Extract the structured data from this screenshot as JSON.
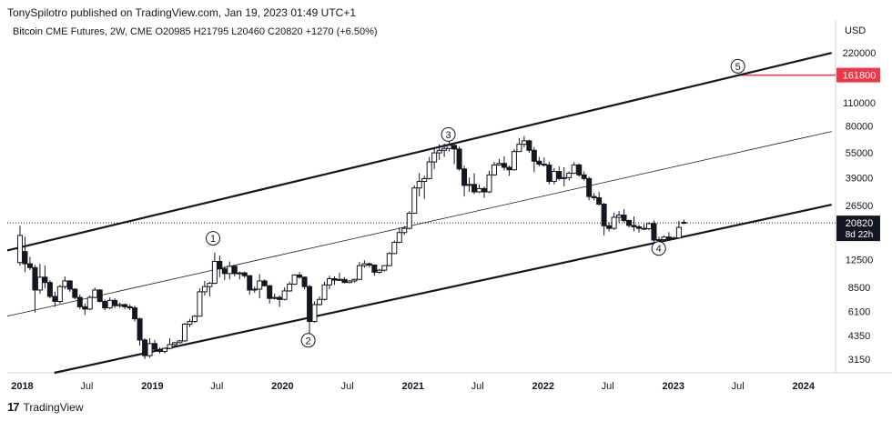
{
  "header": {
    "published_line": "TonySpilotro published on TradingView.com, Jan 19, 2023 01:49 UTC+1",
    "legend": "Bitcoin CME Futures, 2W, CME  O20985  H21795  L20460  C20820  +1270 (+6.50%)"
  },
  "footer": {
    "brand": "TradingView",
    "logo_icon": "tradingview-logo-icon"
  },
  "chart_data": {
    "type": "candlestick",
    "title": "Bitcoin CME Futures, 2W, CME",
    "y_scale": "log",
    "y_unit": "USD",
    "ylim": [
      2600,
      270000
    ],
    "y_ticks": [
      220000,
      161800,
      110000,
      80000,
      55000,
      39000,
      26500,
      20820,
      12500,
      8500,
      6100,
      4350,
      3150
    ],
    "y_tick_labels": [
      "220000",
      "161800",
      "110000",
      "80000",
      "55000",
      "39000",
      "26500",
      "20820",
      "12500",
      "8500",
      "6100",
      "4350",
      "3150"
    ],
    "x_ticks": [
      "2018",
      "Jul",
      "2019",
      "Jul",
      "2020",
      "Jul",
      "2021",
      "Jul",
      "2022",
      "Jul",
      "2023",
      "Jul",
      "2024"
    ],
    "xlim": [
      "2017-11-20",
      "2024-03-31"
    ],
    "x_tick_dates": [
      "2018-01-01",
      "2018-07-01",
      "2019-01-01",
      "2019-07-01",
      "2020-01-01",
      "2020-07-01",
      "2021-01-01",
      "2021-07-01",
      "2022-01-01",
      "2022-07-01",
      "2023-01-01",
      "2023-07-01",
      "2024-01-01"
    ],
    "last_price": {
      "value": 20820,
      "label": "20820",
      "countdown": "8d 22h"
    },
    "target_label": {
      "value": 161800,
      "label": "161800",
      "color": "#f23645"
    },
    "channel_lines": [
      {
        "name": "upper",
        "from": [
          "2017-11-20",
          14200
        ],
        "to": [
          "2024-03-20",
          220000
        ],
        "width": "thick"
      },
      {
        "name": "middle",
        "from": [
          "2017-11-20",
          5700
        ],
        "to": [
          "2024-03-20",
          74000
        ],
        "width": "thin"
      },
      {
        "name": "lower",
        "from": [
          "2018-04-01",
          2600
        ],
        "to": [
          "2024-03-20",
          26800
        ],
        "width": "thick"
      }
    ],
    "annotations": [
      {
        "label": "1",
        "date": "2019-06-20",
        "value": 16800
      },
      {
        "label": "2",
        "date": "2020-03-13",
        "value": 4080
      },
      {
        "label": "3",
        "date": "2021-04-10",
        "value": 71000
      },
      {
        "label": "4",
        "date": "2022-11-21",
        "value": 14600
      },
      {
        "label": "5",
        "date": "2023-07-01",
        "value": 183000
      }
    ],
    "candles": [
      {
        "date": "2017-12-18",
        "o": 12000,
        "h": 20000,
        "l": 11500,
        "c": 17500
      },
      {
        "date": "2018-01-01",
        "o": 14000,
        "h": 17200,
        "l": 10500,
        "c": 11800
      },
      {
        "date": "2018-01-15",
        "o": 11800,
        "h": 13000,
        "l": 10800,
        "c": 11200
      },
      {
        "date": "2018-01-29",
        "o": 11200,
        "h": 11600,
        "l": 6000,
        "c": 8200
      },
      {
        "date": "2018-02-12",
        "o": 8200,
        "h": 11800,
        "l": 7800,
        "c": 9800
      },
      {
        "date": "2018-02-26",
        "o": 9800,
        "h": 11500,
        "l": 8400,
        "c": 9100
      },
      {
        "date": "2018-03-12",
        "o": 9100,
        "h": 9400,
        "l": 7300,
        "c": 7500
      },
      {
        "date": "2018-03-26",
        "o": 7500,
        "h": 8000,
        "l": 6500,
        "c": 7000
      },
      {
        "date": "2018-04-09",
        "o": 7000,
        "h": 8800,
        "l": 6800,
        "c": 8600
      },
      {
        "date": "2018-04-23",
        "o": 8600,
        "h": 9900,
        "l": 8300,
        "c": 9300
      },
      {
        "date": "2018-05-07",
        "o": 9300,
        "h": 9400,
        "l": 8000,
        "c": 8300
      },
      {
        "date": "2018-05-21",
        "o": 8300,
        "h": 8400,
        "l": 7200,
        "c": 7400
      },
      {
        "date": "2018-06-04",
        "o": 7400,
        "h": 7700,
        "l": 6300,
        "c": 6500
      },
      {
        "date": "2018-06-18",
        "o": 6500,
        "h": 6800,
        "l": 5800,
        "c": 6300
      },
      {
        "date": "2018-07-02",
        "o": 6300,
        "h": 7600,
        "l": 6200,
        "c": 7400
      },
      {
        "date": "2018-07-16",
        "o": 7400,
        "h": 8500,
        "l": 7300,
        "c": 8200
      },
      {
        "date": "2018-07-30",
        "o": 8200,
        "h": 8300,
        "l": 6900,
        "c": 7000
      },
      {
        "date": "2018-08-13",
        "o": 7000,
        "h": 7200,
        "l": 6200,
        "c": 6400
      },
      {
        "date": "2018-08-27",
        "o": 6400,
        "h": 7400,
        "l": 6300,
        "c": 7100
      },
      {
        "date": "2018-09-10",
        "o": 7100,
        "h": 7300,
        "l": 6400,
        "c": 6600
      },
      {
        "date": "2018-09-24",
        "o": 6600,
        "h": 6900,
        "l": 6400,
        "c": 6700
      },
      {
        "date": "2018-10-08",
        "o": 6700,
        "h": 6800,
        "l": 6300,
        "c": 6500
      },
      {
        "date": "2018-10-22",
        "o": 6500,
        "h": 6700,
        "l": 6200,
        "c": 6400
      },
      {
        "date": "2018-11-05",
        "o": 6400,
        "h": 6600,
        "l": 5300,
        "c": 5500
      },
      {
        "date": "2018-11-19",
        "o": 5500,
        "h": 5600,
        "l": 3800,
        "c": 4100
      },
      {
        "date": "2018-12-03",
        "o": 4100,
        "h": 4200,
        "l": 3150,
        "c": 3300
      },
      {
        "date": "2018-12-17",
        "o": 3300,
        "h": 4200,
        "l": 3200,
        "c": 3900
      },
      {
        "date": "2018-12-31",
        "o": 3900,
        "h": 4100,
        "l": 3500,
        "c": 3600
      },
      {
        "date": "2019-01-14",
        "o": 3600,
        "h": 3700,
        "l": 3400,
        "c": 3500
      },
      {
        "date": "2019-01-28",
        "o": 3500,
        "h": 3700,
        "l": 3400,
        "c": 3650
      },
      {
        "date": "2019-02-11",
        "o": 3650,
        "h": 4200,
        "l": 3600,
        "c": 3850
      },
      {
        "date": "2019-02-25",
        "o": 3850,
        "h": 4000,
        "l": 3750,
        "c": 3950
      },
      {
        "date": "2019-03-11",
        "o": 3950,
        "h": 4100,
        "l": 3900,
        "c": 4050
      },
      {
        "date": "2019-03-25",
        "o": 4050,
        "h": 5200,
        "l": 4000,
        "c": 5100
      },
      {
        "date": "2019-04-08",
        "o": 5100,
        "h": 5500,
        "l": 4900,
        "c": 5300
      },
      {
        "date": "2019-04-22",
        "o": 5300,
        "h": 5800,
        "l": 5200,
        "c": 5700
      },
      {
        "date": "2019-05-06",
        "o": 5700,
        "h": 8400,
        "l": 5700,
        "c": 8000
      },
      {
        "date": "2019-05-20",
        "o": 8000,
        "h": 9300,
        "l": 7600,
        "c": 8600
      },
      {
        "date": "2019-06-03",
        "o": 8600,
        "h": 9200,
        "l": 7500,
        "c": 9000
      },
      {
        "date": "2019-06-17",
        "o": 9000,
        "h": 13800,
        "l": 8900,
        "c": 12200
      },
      {
        "date": "2019-07-01",
        "o": 12200,
        "h": 13200,
        "l": 9800,
        "c": 11000
      },
      {
        "date": "2019-07-15",
        "o": 11000,
        "h": 11400,
        "l": 9400,
        "c": 10300
      },
      {
        "date": "2019-07-29",
        "o": 10300,
        "h": 12200,
        "l": 9500,
        "c": 11400
      },
      {
        "date": "2019-08-12",
        "o": 11400,
        "h": 11600,
        "l": 9900,
        "c": 10300
      },
      {
        "date": "2019-08-26",
        "o": 10300,
        "h": 10600,
        "l": 9500,
        "c": 10400
      },
      {
        "date": "2019-09-09",
        "o": 10400,
        "h": 10600,
        "l": 9700,
        "c": 10000
      },
      {
        "date": "2019-09-23",
        "o": 10000,
        "h": 10100,
        "l": 7700,
        "c": 8200
      },
      {
        "date": "2019-10-07",
        "o": 8200,
        "h": 8600,
        "l": 7900,
        "c": 8300
      },
      {
        "date": "2019-10-21",
        "o": 8300,
        "h": 10200,
        "l": 7300,
        "c": 9300
      },
      {
        "date": "2019-11-04",
        "o": 9300,
        "h": 9500,
        "l": 8600,
        "c": 8700
      },
      {
        "date": "2019-11-18",
        "o": 8700,
        "h": 8800,
        "l": 6800,
        "c": 7300
      },
      {
        "date": "2019-12-02",
        "o": 7300,
        "h": 7800,
        "l": 7200,
        "c": 7400
      },
      {
        "date": "2019-12-16",
        "o": 7400,
        "h": 7600,
        "l": 6500,
        "c": 7200
      },
      {
        "date": "2019-12-30",
        "o": 7200,
        "h": 8500,
        "l": 7100,
        "c": 8100
      },
      {
        "date": "2020-01-13",
        "o": 8100,
        "h": 9200,
        "l": 8000,
        "c": 8900
      },
      {
        "date": "2020-01-27",
        "o": 8900,
        "h": 10200,
        "l": 8800,
        "c": 10100
      },
      {
        "date": "2020-02-10",
        "o": 10100,
        "h": 10500,
        "l": 9600,
        "c": 9800
      },
      {
        "date": "2020-02-24",
        "o": 9800,
        "h": 9900,
        "l": 8300,
        "c": 8600
      },
      {
        "date": "2020-03-09",
        "o": 8600,
        "h": 8800,
        "l": 3800,
        "c": 5300
      },
      {
        "date": "2020-03-23",
        "o": 5300,
        "h": 7000,
        "l": 5200,
        "c": 6700
      },
      {
        "date": "2020-04-06",
        "o": 6700,
        "h": 7500,
        "l": 6600,
        "c": 7200
      },
      {
        "date": "2020-04-20",
        "o": 7200,
        "h": 9200,
        "l": 7100,
        "c": 8800
      },
      {
        "date": "2020-05-04",
        "o": 8800,
        "h": 10000,
        "l": 8300,
        "c": 9600
      },
      {
        "date": "2020-05-18",
        "o": 9600,
        "h": 9900,
        "l": 8800,
        "c": 9400
      },
      {
        "date": "2020-06-01",
        "o": 9400,
        "h": 10400,
        "l": 9300,
        "c": 9500
      },
      {
        "date": "2020-06-15",
        "o": 9500,
        "h": 9800,
        "l": 9000,
        "c": 9100
      },
      {
        "date": "2020-06-29",
        "o": 9100,
        "h": 9400,
        "l": 9000,
        "c": 9300
      },
      {
        "date": "2020-07-13",
        "o": 9300,
        "h": 9600,
        "l": 9100,
        "c": 9500
      },
      {
        "date": "2020-07-27",
        "o": 9500,
        "h": 12100,
        "l": 9500,
        "c": 11500
      },
      {
        "date": "2020-08-10",
        "o": 11500,
        "h": 12400,
        "l": 11200,
        "c": 11800
      },
      {
        "date": "2020-08-24",
        "o": 11800,
        "h": 12000,
        "l": 11200,
        "c": 11600
      },
      {
        "date": "2020-09-07",
        "o": 11600,
        "h": 11700,
        "l": 10000,
        "c": 10500
      },
      {
        "date": "2020-09-21",
        "o": 10500,
        "h": 11000,
        "l": 10300,
        "c": 10800
      },
      {
        "date": "2020-10-05",
        "o": 10800,
        "h": 11600,
        "l": 10600,
        "c": 11500
      },
      {
        "date": "2020-10-19",
        "o": 11500,
        "h": 13900,
        "l": 11400,
        "c": 13600
      },
      {
        "date": "2020-11-02",
        "o": 13600,
        "h": 16300,
        "l": 13500,
        "c": 15900
      },
      {
        "date": "2020-11-16",
        "o": 15900,
        "h": 19500,
        "l": 15700,
        "c": 18200
      },
      {
        "date": "2020-11-30",
        "o": 18200,
        "h": 19900,
        "l": 17600,
        "c": 19300
      },
      {
        "date": "2020-12-14",
        "o": 19300,
        "h": 24500,
        "l": 19000,
        "c": 23800
      },
      {
        "date": "2020-12-28",
        "o": 23800,
        "h": 35000,
        "l": 23600,
        "c": 33800
      },
      {
        "date": "2021-01-11",
        "o": 33800,
        "h": 41500,
        "l": 30000,
        "c": 37000
      },
      {
        "date": "2021-01-25",
        "o": 37000,
        "h": 40000,
        "l": 29000,
        "c": 38500
      },
      {
        "date": "2021-02-08",
        "o": 38500,
        "h": 52000,
        "l": 38000,
        "c": 48500
      },
      {
        "date": "2021-02-22",
        "o": 48500,
        "h": 58000,
        "l": 44000,
        "c": 55000
      },
      {
        "date": "2021-03-08",
        "o": 55000,
        "h": 62000,
        "l": 50000,
        "c": 57000
      },
      {
        "date": "2021-03-22",
        "o": 57000,
        "h": 62500,
        "l": 52000,
        "c": 58500
      },
      {
        "date": "2021-04-05",
        "o": 58500,
        "h": 65500,
        "l": 56000,
        "c": 61000
      },
      {
        "date": "2021-04-19",
        "o": 61000,
        "h": 62000,
        "l": 47000,
        "c": 58000
      },
      {
        "date": "2021-05-03",
        "o": 58000,
        "h": 60000,
        "l": 43000,
        "c": 44000
      },
      {
        "date": "2021-05-17",
        "o": 44000,
        "h": 46000,
        "l": 30000,
        "c": 35000
      },
      {
        "date": "2021-05-31",
        "o": 35000,
        "h": 39000,
        "l": 32000,
        "c": 35500
      },
      {
        "date": "2021-06-14",
        "o": 35500,
        "h": 41500,
        "l": 31000,
        "c": 32000
      },
      {
        "date": "2021-06-28",
        "o": 32000,
        "h": 35500,
        "l": 31500,
        "c": 33500
      },
      {
        "date": "2021-07-12",
        "o": 33500,
        "h": 34500,
        "l": 29500,
        "c": 32000
      },
      {
        "date": "2021-07-26",
        "o": 32000,
        "h": 43000,
        "l": 31500,
        "c": 40500
      },
      {
        "date": "2021-08-09",
        "o": 40500,
        "h": 48500,
        "l": 40000,
        "c": 46500
      },
      {
        "date": "2021-08-23",
        "o": 46500,
        "h": 50500,
        "l": 46000,
        "c": 47500
      },
      {
        "date": "2021-09-06",
        "o": 47500,
        "h": 52500,
        "l": 43000,
        "c": 45000
      },
      {
        "date": "2021-09-20",
        "o": 45000,
        "h": 46000,
        "l": 40000,
        "c": 43500
      },
      {
        "date": "2021-10-04",
        "o": 43500,
        "h": 58000,
        "l": 43000,
        "c": 56000
      },
      {
        "date": "2021-10-18",
        "o": 56000,
        "h": 67500,
        "l": 56000,
        "c": 62000
      },
      {
        "date": "2021-11-01",
        "o": 62000,
        "h": 69500,
        "l": 59500,
        "c": 65000
      },
      {
        "date": "2021-11-15",
        "o": 65000,
        "h": 66000,
        "l": 55000,
        "c": 57000
      },
      {
        "date": "2021-11-29",
        "o": 57000,
        "h": 59500,
        "l": 42000,
        "c": 49000
      },
      {
        "date": "2021-12-13",
        "o": 49000,
        "h": 52000,
        "l": 45500,
        "c": 47000
      },
      {
        "date": "2021-12-27",
        "o": 47000,
        "h": 51500,
        "l": 45500,
        "c": 46500
      },
      {
        "date": "2022-01-10",
        "o": 46500,
        "h": 48500,
        "l": 35500,
        "c": 37000
      },
      {
        "date": "2022-01-24",
        "o": 37000,
        "h": 44500,
        "l": 35500,
        "c": 42500
      },
      {
        "date": "2022-02-07",
        "o": 42500,
        "h": 45500,
        "l": 37500,
        "c": 38500
      },
      {
        "date": "2022-02-21",
        "o": 38500,
        "h": 45000,
        "l": 34500,
        "c": 39000
      },
      {
        "date": "2022-03-07",
        "o": 39000,
        "h": 42500,
        "l": 37500,
        "c": 41500
      },
      {
        "date": "2022-03-21",
        "o": 41500,
        "h": 48500,
        "l": 41000,
        "c": 46500
      },
      {
        "date": "2022-04-04",
        "o": 46500,
        "h": 47500,
        "l": 39500,
        "c": 40500
      },
      {
        "date": "2022-04-18",
        "o": 40500,
        "h": 42500,
        "l": 37500,
        "c": 38500
      },
      {
        "date": "2022-05-02",
        "o": 38500,
        "h": 39500,
        "l": 28500,
        "c": 30000
      },
      {
        "date": "2022-05-16",
        "o": 30000,
        "h": 31500,
        "l": 28500,
        "c": 29500
      },
      {
        "date": "2022-05-30",
        "o": 29500,
        "h": 32000,
        "l": 26500,
        "c": 27000
      },
      {
        "date": "2022-06-13",
        "o": 27000,
        "h": 27500,
        "l": 17500,
        "c": 20000
      },
      {
        "date": "2022-06-27",
        "o": 20000,
        "h": 21000,
        "l": 18500,
        "c": 19300
      },
      {
        "date": "2022-07-11",
        "o": 19300,
        "h": 24000,
        "l": 18900,
        "c": 22500
      },
      {
        "date": "2022-07-25",
        "o": 22500,
        "h": 24500,
        "l": 20800,
        "c": 23200
      },
      {
        "date": "2022-08-08",
        "o": 23200,
        "h": 25200,
        "l": 21000,
        "c": 21500
      },
      {
        "date": "2022-08-22",
        "o": 21500,
        "h": 21800,
        "l": 19500,
        "c": 20100
      },
      {
        "date": "2022-09-05",
        "o": 20100,
        "h": 22800,
        "l": 18500,
        "c": 19700
      },
      {
        "date": "2022-09-19",
        "o": 19700,
        "h": 20300,
        "l": 18200,
        "c": 19300
      },
      {
        "date": "2022-10-03",
        "o": 19300,
        "h": 20500,
        "l": 18900,
        "c": 19200
      },
      {
        "date": "2022-10-17",
        "o": 19200,
        "h": 21000,
        "l": 18800,
        "c": 20600
      },
      {
        "date": "2022-10-31",
        "o": 20600,
        "h": 21500,
        "l": 15600,
        "c": 16400
      },
      {
        "date": "2022-11-14",
        "o": 16400,
        "h": 17200,
        "l": 15500,
        "c": 16500
      },
      {
        "date": "2022-11-28",
        "o": 16500,
        "h": 17500,
        "l": 16200,
        "c": 17100
      },
      {
        "date": "2022-12-12",
        "o": 17100,
        "h": 18300,
        "l": 16500,
        "c": 16700
      },
      {
        "date": "2022-12-26",
        "o": 16700,
        "h": 17200,
        "l": 16400,
        "c": 16900
      },
      {
        "date": "2023-01-09",
        "o": 16900,
        "h": 21500,
        "l": 16800,
        "c": 19550
      },
      {
        "date": "2023-01-23",
        "o": 20985,
        "h": 21795,
        "l": 20460,
        "c": 20820
      }
    ]
  }
}
